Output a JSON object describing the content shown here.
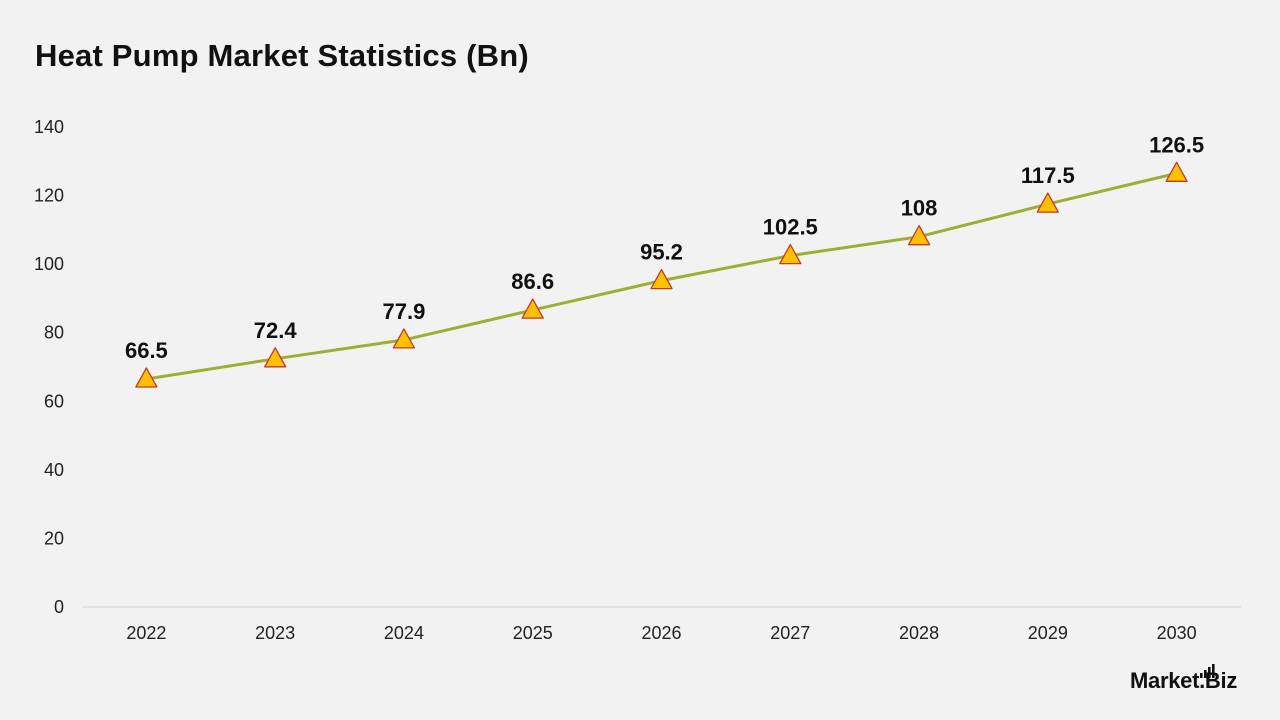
{
  "page": {
    "title": "Heat Pump Market Statistics (Bn)",
    "logo_text": "Market.Biz"
  },
  "chart_data": {
    "type": "line",
    "title": "Heat Pump Market Statistics (Bn)",
    "xlabel": "",
    "ylabel": "",
    "categories": [
      "2022",
      "2023",
      "2024",
      "2025",
      "2026",
      "2027",
      "2028",
      "2029",
      "2030"
    ],
    "series": [
      {
        "values": [
          66.5,
          72.4,
          77.9,
          86.6,
          95.2,
          102.5,
          108,
          117.5,
          126.5
        ],
        "data_labels": [
          "66.5",
          "72.4",
          "77.9",
          "86.6",
          "95.2",
          "102.5",
          "108",
          "117.5",
          "126.5"
        ],
        "line_color": "#9fae32",
        "marker": "triangle",
        "marker_fill": "#ffc000",
        "marker_stroke": "#c0392b"
      }
    ],
    "ylim": [
      0,
      140
    ],
    "yticks": [
      "0",
      "20",
      "40",
      "60",
      "80",
      "100",
      "120",
      "140"
    ],
    "grid": false,
    "legend": "none",
    "colors": {
      "axis_line": "#d9d9d9",
      "background": "#f2f2f2"
    }
  }
}
